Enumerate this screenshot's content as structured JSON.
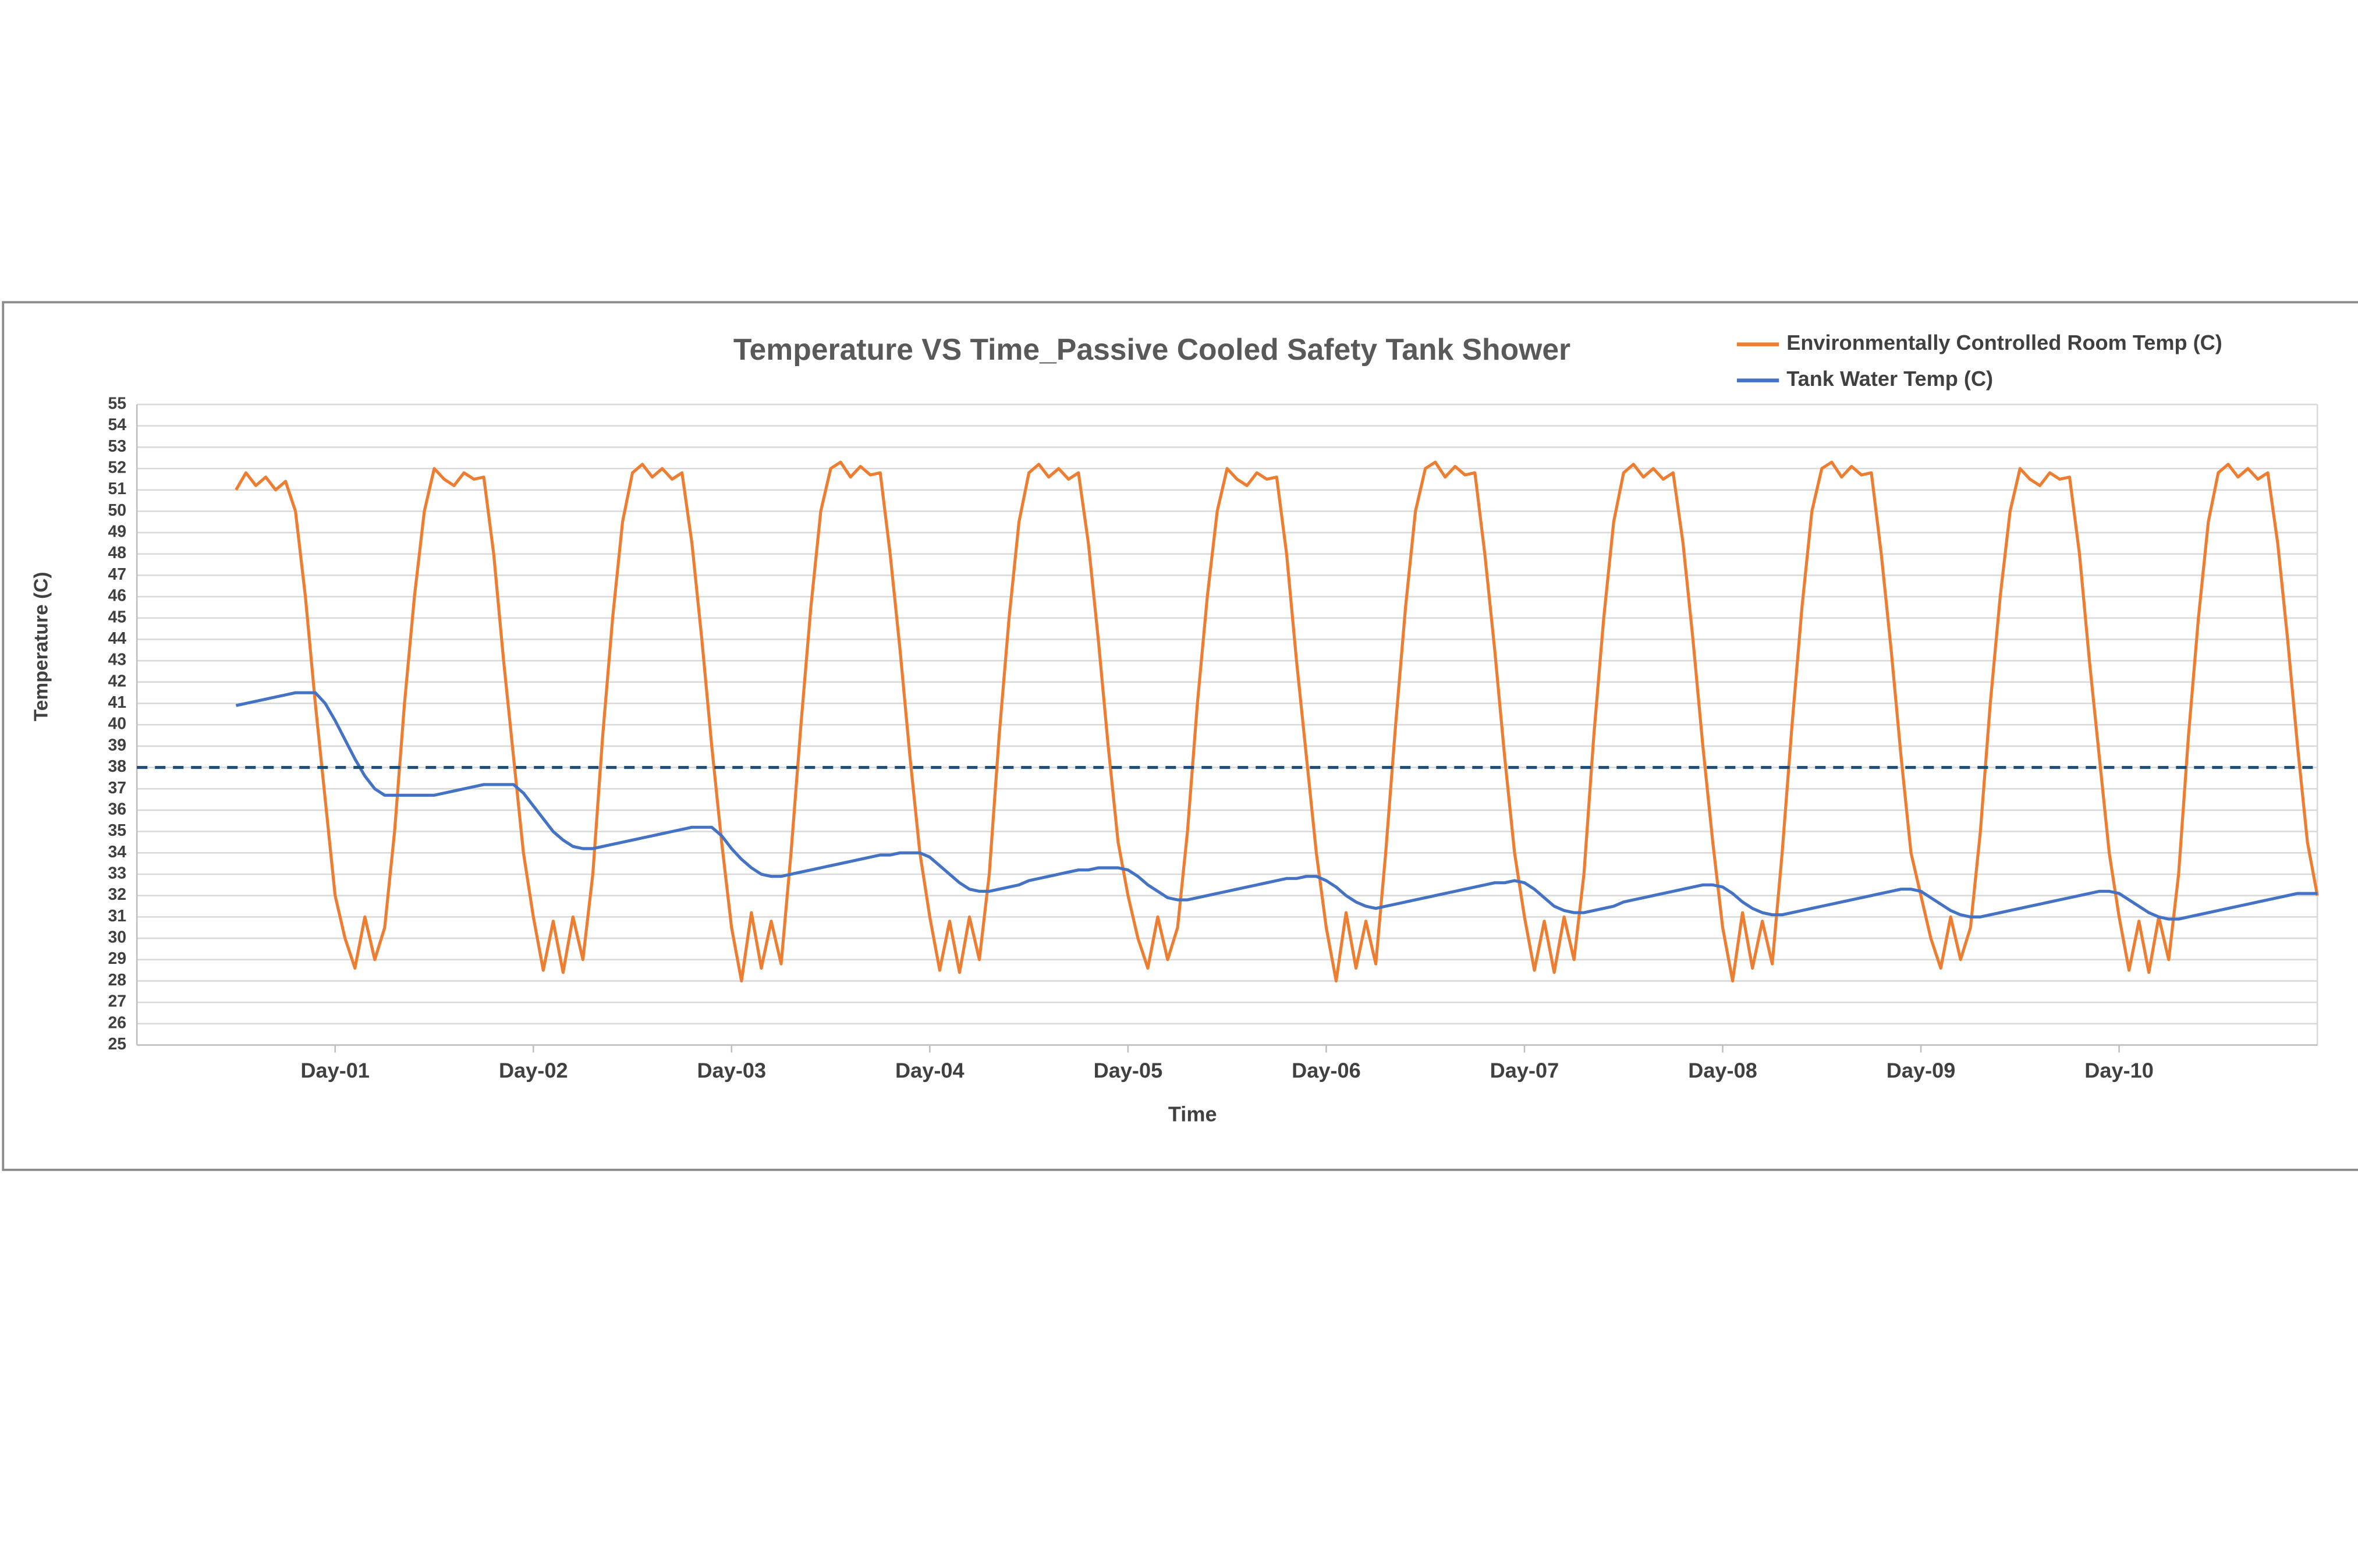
{
  "chart_data": {
    "type": "line",
    "title": "Temperature VS Time_Passive Cooled Safety Tank Shower",
    "xlabel": "Time",
    "ylabel": "Temperature (C)",
    "xlim": [
      0,
      11
    ],
    "ylim": [
      25,
      55
    ],
    "xticks": [
      {
        "value": 1,
        "label": "Day-01"
      },
      {
        "value": 2,
        "label": "Day-02"
      },
      {
        "value": 3,
        "label": "Day-03"
      },
      {
        "value": 4,
        "label": "Day-04"
      },
      {
        "value": 5,
        "label": "Day-05"
      },
      {
        "value": 6,
        "label": "Day-06"
      },
      {
        "value": 7,
        "label": "Day-07"
      },
      {
        "value": 8,
        "label": "Day-08"
      },
      {
        "value": 9,
        "label": "Day-09"
      },
      {
        "value": 10,
        "label": "Day-10"
      }
    ],
    "yticks": [
      25,
      26,
      27,
      28,
      29,
      30,
      31,
      32,
      33,
      34,
      35,
      36,
      37,
      38,
      39,
      40,
      41,
      42,
      43,
      44,
      45,
      46,
      47,
      48,
      49,
      50,
      51,
      52,
      53,
      54,
      55
    ],
    "grid": true,
    "legend": "top-right",
    "hline": {
      "value": 38,
      "color": "#1f4e79",
      "dashed": true
    },
    "x": [
      0.5,
      0.55,
      0.6,
      0.65,
      0.7,
      0.75,
      0.8,
      0.85,
      0.9,
      0.95,
      1,
      1.05,
      1.1,
      1.15,
      1.2,
      1.25,
      1.3,
      1.35,
      1.4,
      1.45,
      1.5,
      1.55,
      1.6,
      1.65,
      1.7,
      1.75,
      1.8,
      1.85,
      1.9,
      1.95,
      2,
      2.05,
      2.1,
      2.15,
      2.2,
      2.25,
      2.3,
      2.35,
      2.4,
      2.45,
      2.5,
      2.55,
      2.6,
      2.65,
      2.7,
      2.75,
      2.8,
      2.85,
      2.9,
      2.95,
      3,
      3.05,
      3.1,
      3.15,
      3.2,
      3.25,
      3.3,
      3.35,
      3.4,
      3.45,
      3.5,
      3.55,
      3.6,
      3.65,
      3.7,
      3.75,
      3.8,
      3.85,
      3.9,
      3.95,
      4,
      4.05,
      4.1,
      4.15,
      4.2,
      4.25,
      4.3,
      4.35,
      4.4,
      4.45,
      4.5,
      4.55,
      4.6,
      4.65,
      4.7,
      4.75,
      4.8,
      4.85,
      4.9,
      4.95,
      5,
      5.05,
      5.1,
      5.15,
      5.2,
      5.25,
      5.3,
      5.35,
      5.4,
      5.45,
      5.5,
      5.55,
      5.6,
      5.65,
      5.7,
      5.75,
      5.8,
      5.85,
      5.9,
      5.95,
      6,
      6.05,
      6.1,
      6.15,
      6.2,
      6.25,
      6.3,
      6.35,
      6.4,
      6.45,
      6.5,
      6.55,
      6.6,
      6.65,
      6.7,
      6.75,
      6.8,
      6.85,
      6.9,
      6.95,
      7,
      7.05,
      7.1,
      7.15,
      7.2,
      7.25,
      7.3,
      7.35,
      7.4,
      7.45,
      7.5,
      7.55,
      7.6,
      7.65,
      7.7,
      7.75,
      7.8,
      7.85,
      7.9,
      7.95,
      8,
      8.05,
      8.1,
      8.15,
      8.2,
      8.25,
      8.3,
      8.35,
      8.4,
      8.45,
      8.5,
      8.55,
      8.6,
      8.65,
      8.7,
      8.75,
      8.8,
      8.85,
      8.9,
      8.95,
      9,
      9.05,
      9.1,
      9.15,
      9.2,
      9.25,
      9.3,
      9.35,
      9.4,
      9.45,
      9.5,
      9.55,
      9.6,
      9.65,
      9.7,
      9.75,
      9.8,
      9.85,
      9.9,
      9.95,
      10,
      10.05,
      10.1,
      10.15,
      10.2,
      10.25,
      10.3,
      10.35,
      10.4,
      10.45,
      10.5,
      10.55,
      10.6,
      10.65,
      10.7,
      10.75,
      10.8,
      10.85,
      10.9,
      10.95,
      11
    ],
    "series": [
      {
        "name": "Environmentally Controlled Room Temp (C)",
        "color": "#ed7d31",
        "values": [
          51,
          51.8,
          51.2,
          51.6,
          51,
          51.4,
          50,
          46,
          41,
          36.5,
          32,
          30,
          28.6,
          31,
          29,
          30.5,
          35,
          41,
          46,
          50,
          52,
          51.5,
          51.2,
          51.8,
          51.5,
          51.6,
          48,
          43,
          38.5,
          34,
          31,
          28.5,
          30.8,
          28.4,
          31,
          29,
          33,
          39.5,
          45,
          49.5,
          51.8,
          52.2,
          51.6,
          52,
          51.5,
          51.8,
          48.5,
          44,
          39,
          34.5,
          30.5,
          28,
          31.2,
          28.6,
          30.8,
          28.8,
          34,
          40,
          45.5,
          50,
          52,
          52.3,
          51.6,
          52.1,
          51.7,
          51.8,
          48,
          43.5,
          38.5,
          34,
          31,
          28.5,
          30.8,
          28.4,
          31,
          29,
          33,
          39.5,
          45,
          49.5,
          51.8,
          52.2,
          51.6,
          52,
          51.5,
          51.8,
          48.5,
          44,
          39,
          34.5,
          32,
          30,
          28.6,
          31,
          29,
          30.5,
          35,
          41,
          46,
          50,
          52,
          51.5,
          51.2,
          51.8,
          51.5,
          51.6,
          48,
          43,
          38.5,
          34,
          30.5,
          28,
          31.2,
          28.6,
          30.8,
          28.8,
          34,
          40,
          45.5,
          50,
          52,
          52.3,
          51.6,
          52.1,
          51.7,
          51.8,
          48,
          43.5,
          38.5,
          34,
          31,
          28.5,
          30.8,
          28.4,
          31,
          29,
          33,
          39.5,
          45,
          49.5,
          51.8,
          52.2,
          51.6,
          52,
          51.5,
          51.8,
          48.5,
          44,
          39,
          34.5,
          30.5,
          28,
          31.2,
          28.6,
          30.8,
          28.8,
          34,
          40,
          45.5,
          50,
          52,
          52.3,
          51.6,
          52.1,
          51.7,
          51.8,
          48,
          43.5,
          38.5,
          34,
          32,
          30,
          28.6,
          31,
          29,
          30.5,
          35,
          41,
          46,
          50,
          52,
          51.5,
          51.2,
          51.8,
          51.5,
          51.6,
          48,
          43,
          38.5,
          34,
          31,
          28.5,
          30.8,
          28.4,
          31,
          29,
          33,
          39.5,
          45,
          49.5,
          51.8,
          52.2,
          51.6,
          52,
          51.5,
          51.8,
          48.5,
          44,
          39,
          34.5,
          32
        ]
      },
      {
        "name": "Tank Water Temp (C)",
        "color": "#4472c4",
        "values": [
          40.9,
          41.0,
          41.1,
          41.2,
          41.3,
          41.4,
          41.5,
          41.5,
          41.5,
          41.0,
          40.2,
          39.3,
          38.4,
          37.6,
          37.0,
          36.7,
          36.7,
          36.7,
          36.7,
          36.7,
          36.7,
          36.8,
          36.9,
          37.0,
          37.1,
          37.2,
          37.2,
          37.2,
          37.2,
          36.8,
          36.2,
          35.6,
          35.0,
          34.6,
          34.3,
          34.2,
          34.2,
          34.3,
          34.4,
          34.5,
          34.6,
          34.7,
          34.8,
          34.9,
          35.0,
          35.1,
          35.2,
          35.2,
          35.2,
          34.8,
          34.2,
          33.7,
          33.3,
          33.0,
          32.9,
          32.9,
          33.0,
          33.1,
          33.2,
          33.3,
          33.4,
          33.5,
          33.6,
          33.7,
          33.8,
          33.9,
          33.9,
          34.0,
          34.0,
          34.0,
          33.8,
          33.4,
          33.0,
          32.6,
          32.3,
          32.2,
          32.2,
          32.3,
          32.4,
          32.5,
          32.7,
          32.8,
          32.9,
          33.0,
          33.1,
          33.2,
          33.2,
          33.3,
          33.3,
          33.3,
          33.2,
          32.9,
          32.5,
          32.2,
          31.9,
          31.8,
          31.8,
          31.9,
          32.0,
          32.1,
          32.2,
          32.3,
          32.4,
          32.5,
          32.6,
          32.7,
          32.8,
          32.8,
          32.9,
          32.9,
          32.7,
          32.4,
          32.0,
          31.7,
          31.5,
          31.4,
          31.5,
          31.6,
          31.7,
          31.8,
          31.9,
          32.0,
          32.1,
          32.2,
          32.3,
          32.4,
          32.5,
          32.6,
          32.6,
          32.7,
          32.6,
          32.3,
          31.9,
          31.5,
          31.3,
          31.2,
          31.2,
          31.3,
          31.4,
          31.5,
          31.7,
          31.8,
          31.9,
          32.0,
          32.1,
          32.2,
          32.3,
          32.4,
          32.5,
          32.5,
          32.4,
          32.1,
          31.7,
          31.4,
          31.2,
          31.1,
          31.1,
          31.2,
          31.3,
          31.4,
          31.5,
          31.6,
          31.7,
          31.8,
          31.9,
          32.0,
          32.1,
          32.2,
          32.3,
          32.3,
          32.2,
          31.9,
          31.6,
          31.3,
          31.1,
          31.0,
          31.0,
          31.1,
          31.2,
          31.3,
          31.4,
          31.5,
          31.6,
          31.7,
          31.8,
          31.9,
          32.0,
          32.1,
          32.2,
          32.2,
          32.1,
          31.8,
          31.5,
          31.2,
          31.0,
          30.9,
          30.9,
          31.0,
          31.1,
          31.2,
          31.3,
          31.4,
          31.5,
          31.6,
          31.7,
          31.8,
          31.9,
          32.0,
          32.1,
          32.1,
          32.1
        ]
      }
    ]
  }
}
